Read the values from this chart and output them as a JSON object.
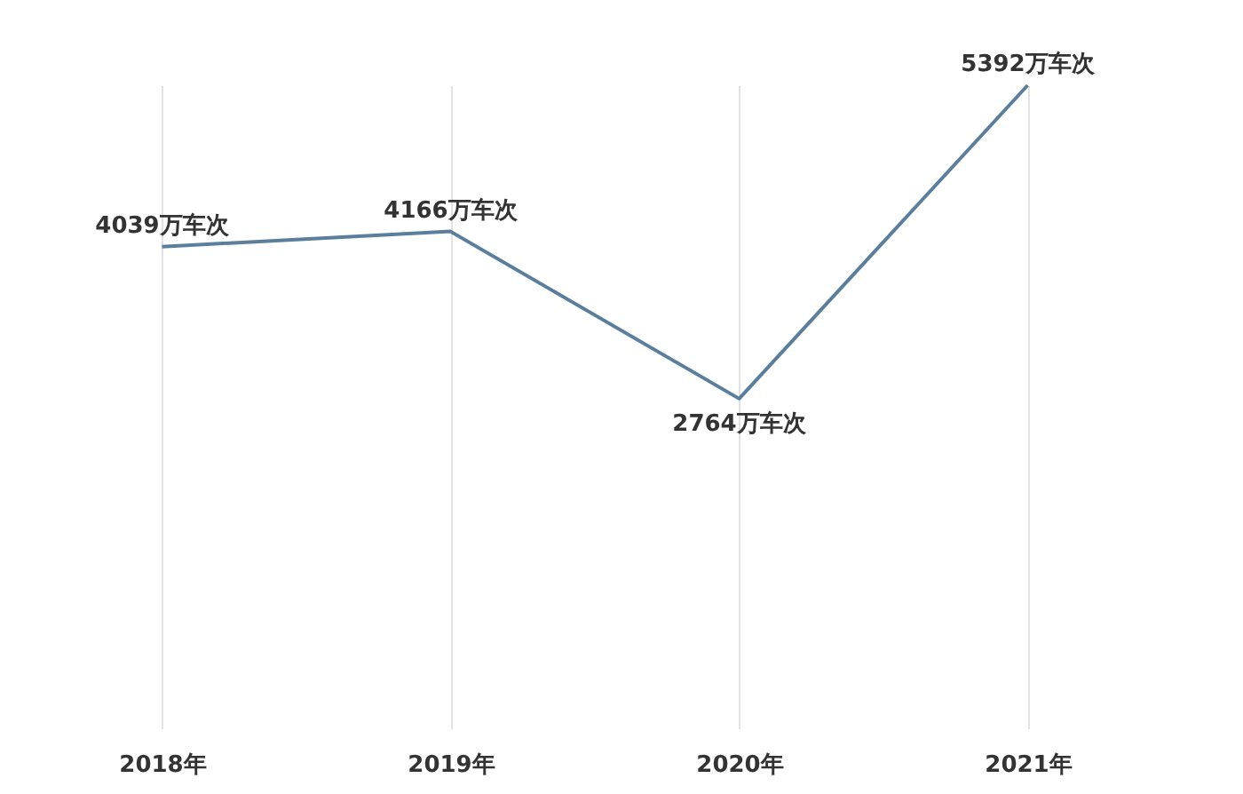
{
  "chart_data": {
    "type": "line",
    "categories": [
      "2018年",
      "2019年",
      "2020年",
      "2021年"
    ],
    "series": [
      {
        "color": "#5b7e9c",
        "values": [
          4039,
          4166,
          2764,
          5392
        ],
        "value_labels": [
          "4039万车次",
          "4166万车次",
          "2764万车次",
          "5392万车次"
        ]
      }
    ],
    "grid": "x",
    "marker": "none",
    "line_style": "solid"
  }
}
